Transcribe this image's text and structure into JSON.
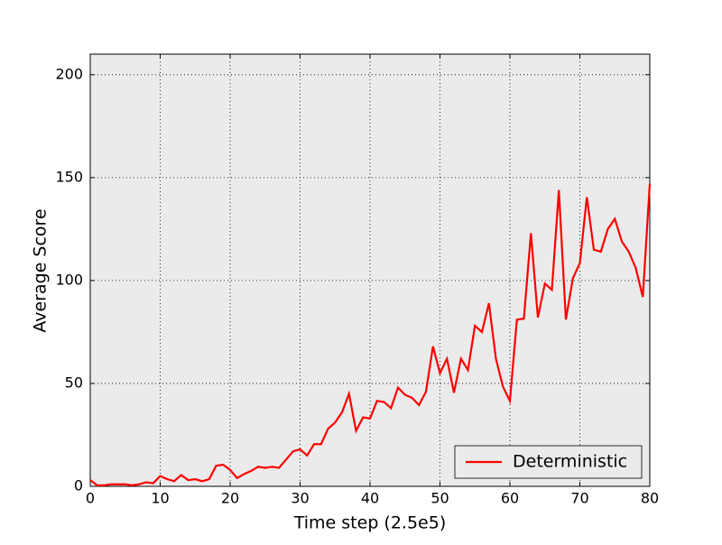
{
  "chart_data": {
    "type": "line",
    "xlabel": "Time step (2.5e5)",
    "ylabel": "Average Score",
    "x": [
      0,
      1,
      2,
      3,
      4,
      5,
      6,
      7,
      8,
      9,
      10,
      11,
      12,
      13,
      14,
      15,
      16,
      17,
      18,
      19,
      20,
      21,
      22,
      23,
      24,
      25,
      26,
      27,
      28,
      29,
      30,
      31,
      32,
      33,
      34,
      35,
      36,
      37,
      38,
      39,
      40,
      41,
      42,
      43,
      44,
      45,
      46,
      47,
      48,
      49,
      50,
      51,
      52,
      53,
      54,
      55,
      56,
      57,
      58,
      59,
      60,
      61,
      62,
      63,
      64,
      65,
      66,
      67,
      68,
      69,
      70,
      71,
      72,
      73,
      74,
      75,
      76,
      77,
      78,
      79,
      80
    ],
    "series": [
      {
        "name": "Deterministic",
        "color": "#ff0000",
        "values": [
          3,
          0.5,
          0.5,
          1,
          1,
          1,
          0.5,
          1,
          2,
          1.5,
          5,
          3.5,
          2.5,
          5.5,
          3,
          3.5,
          2.5,
          3.5,
          10,
          10.5,
          8,
          4,
          6,
          7.5,
          9.5,
          9,
          9.5,
          9,
          13,
          17,
          18,
          15,
          20.5,
          20.5,
          28,
          31,
          36,
          45,
          27,
          33.5,
          33,
          41.5,
          41,
          38,
          48,
          44.5,
          43,
          39.5,
          46,
          68,
          55,
          62,
          45.5,
          62,
          56.5,
          78,
          75,
          89,
          62,
          48.5,
          41.5,
          81,
          81.5,
          123,
          82,
          98.5,
          95.5,
          144,
          81,
          101,
          108.5,
          140.5,
          115,
          114,
          125,
          130,
          119,
          114,
          106,
          92,
          147
        ]
      }
    ],
    "xlim": [
      0,
      80
    ],
    "xticks": [
      0,
      10,
      20,
      30,
      40,
      50,
      60,
      70,
      80
    ],
    "ylim": [
      0,
      210
    ],
    "yticks": [
      0,
      50,
      100,
      150,
      200
    ],
    "grid": true,
    "legend": "lower right"
  }
}
